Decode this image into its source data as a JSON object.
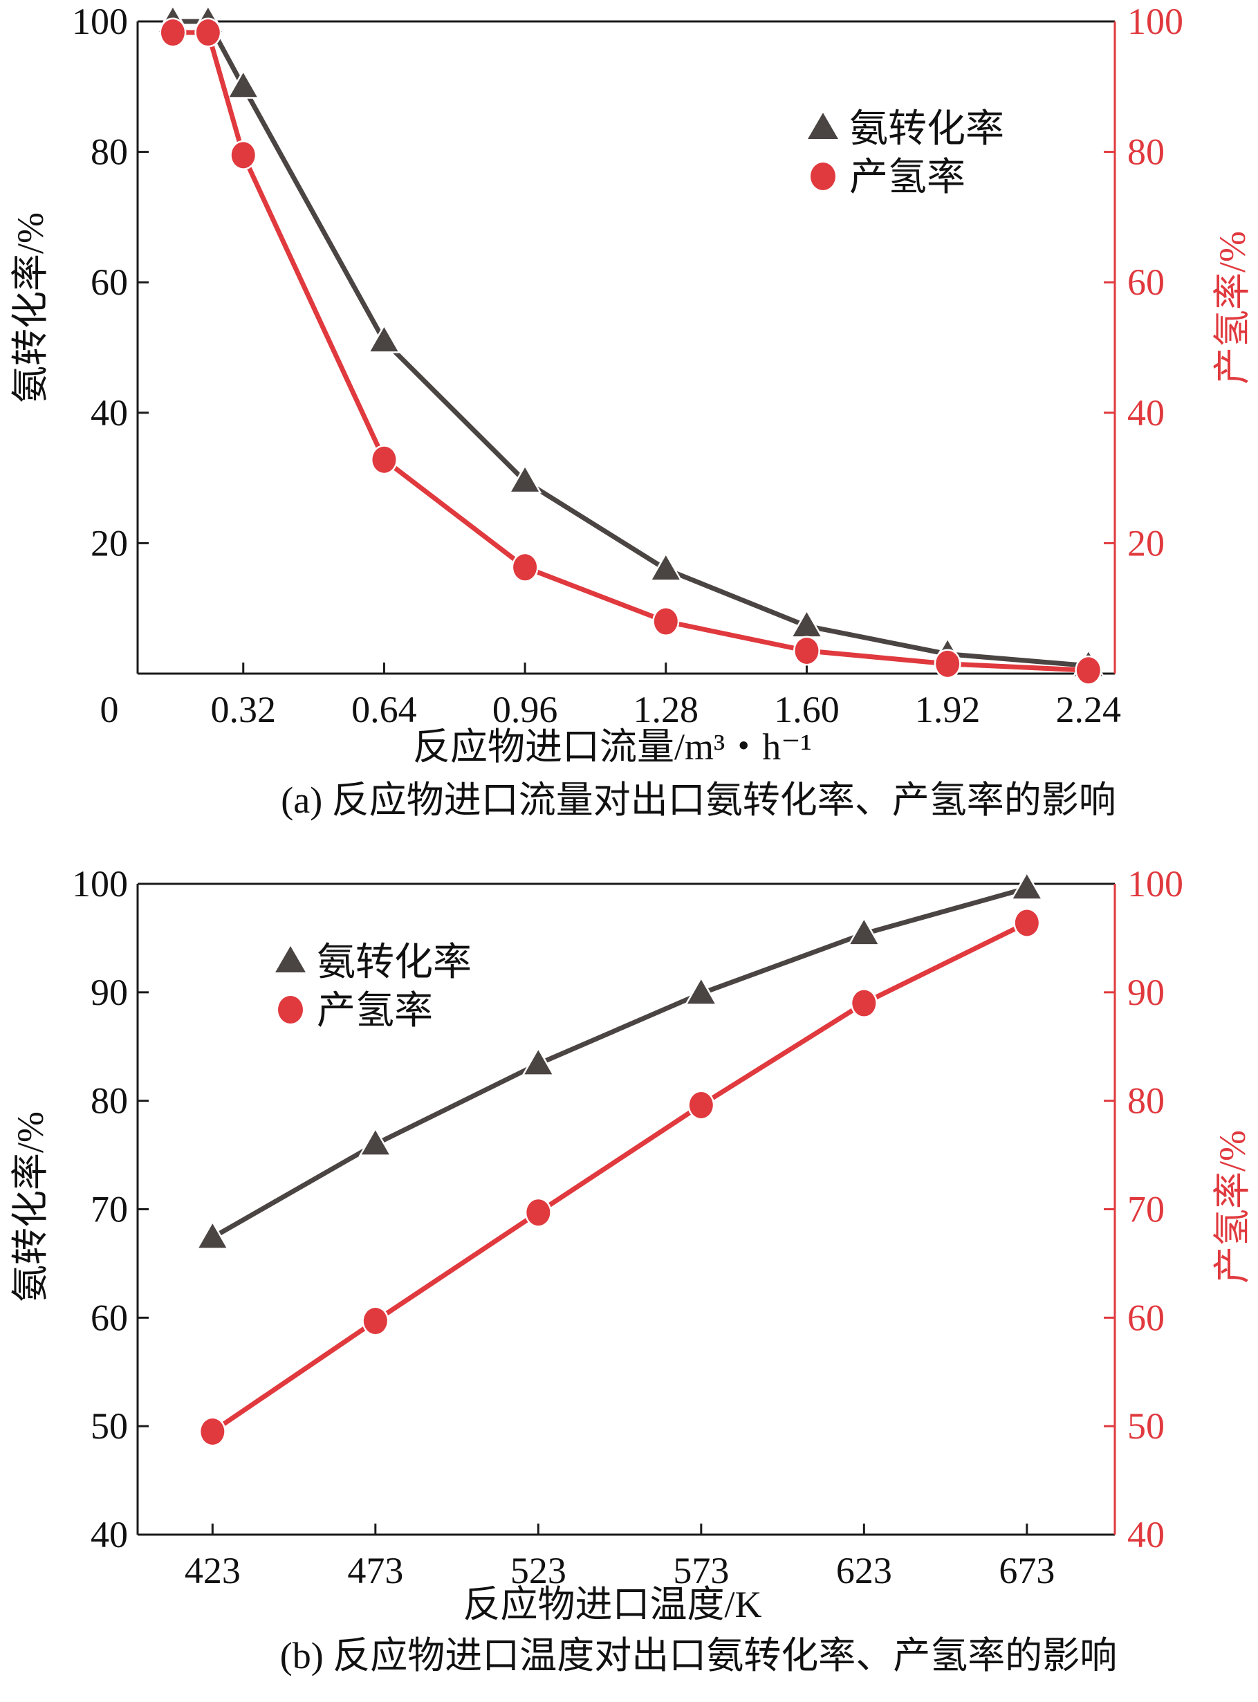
{
  "colors": {
    "dark": "#4a4442",
    "red": "#e0393e",
    "axis": "#1a1a1a"
  },
  "chart_data": [
    {
      "type": "line",
      "caption": "(a) 反应物进口流量对出口氨转化率、产氢率的影响",
      "xlabel": "反应物进口流量/m³・h⁻¹",
      "ylabel": "氨转化率/%",
      "ylabel_right": "产氢率/%",
      "xlim": [
        0.08,
        2.3
      ],
      "ylim": [
        0,
        100
      ],
      "origin_label": "0",
      "xticks": [
        0.32,
        0.64,
        0.96,
        1.28,
        1.6,
        1.92,
        2.24
      ],
      "xtick_labels": [
        "0.32",
        "0.64",
        "0.96",
        "1.28",
        "1.60",
        "1.92",
        "2.24"
      ],
      "yticks": [
        20,
        40,
        60,
        80,
        100
      ],
      "ytick_labels": [
        "20",
        "40",
        "60",
        "80",
        "100"
      ],
      "legend_position": "top-right",
      "x": [
        0.16,
        0.24,
        0.32,
        0.64,
        0.96,
        1.28,
        1.6,
        1.92,
        2.24
      ],
      "series": [
        {
          "name": "氨转化率",
          "marker": "triangle",
          "values": [
            100,
            100,
            90,
            51,
            29.5,
            16,
            7.3,
            3,
            1.2
          ]
        },
        {
          "name": "产氢率",
          "marker": "circle",
          "values": [
            98.3,
            98.3,
            79.5,
            32.8,
            16.3,
            8,
            3.5,
            1.5,
            0.5
          ]
        }
      ]
    },
    {
      "type": "line",
      "caption": "(b) 反应物进口温度对出口氨转化率、产氢率的影响",
      "xlabel": "反应物进口温度/K",
      "ylabel": "氨转化率/%",
      "ylabel_right": "产氢率/%",
      "xlim": [
        400,
        700
      ],
      "ylim": [
        40,
        100
      ],
      "origin_label": "",
      "xticks": [
        423,
        473,
        523,
        573,
        623,
        673
      ],
      "xtick_labels": [
        "423",
        "473",
        "523",
        "573",
        "623",
        "673"
      ],
      "yticks": [
        40,
        50,
        60,
        70,
        80,
        90,
        100
      ],
      "ytick_labels": [
        "40",
        "50",
        "60",
        "70",
        "80",
        "90",
        "100"
      ],
      "legend_position": "top-left",
      "x": [
        423,
        473,
        523,
        573,
        623,
        673
      ],
      "series": [
        {
          "name": "氨转化率",
          "marker": "triangle",
          "values": [
            67.4,
            76,
            83.4,
            89.9,
            95.4,
            99.6
          ]
        },
        {
          "name": "产氢率",
          "marker": "circle",
          "values": [
            49.5,
            59.7,
            69.7,
            79.6,
            89,
            96.4
          ]
        }
      ]
    }
  ]
}
